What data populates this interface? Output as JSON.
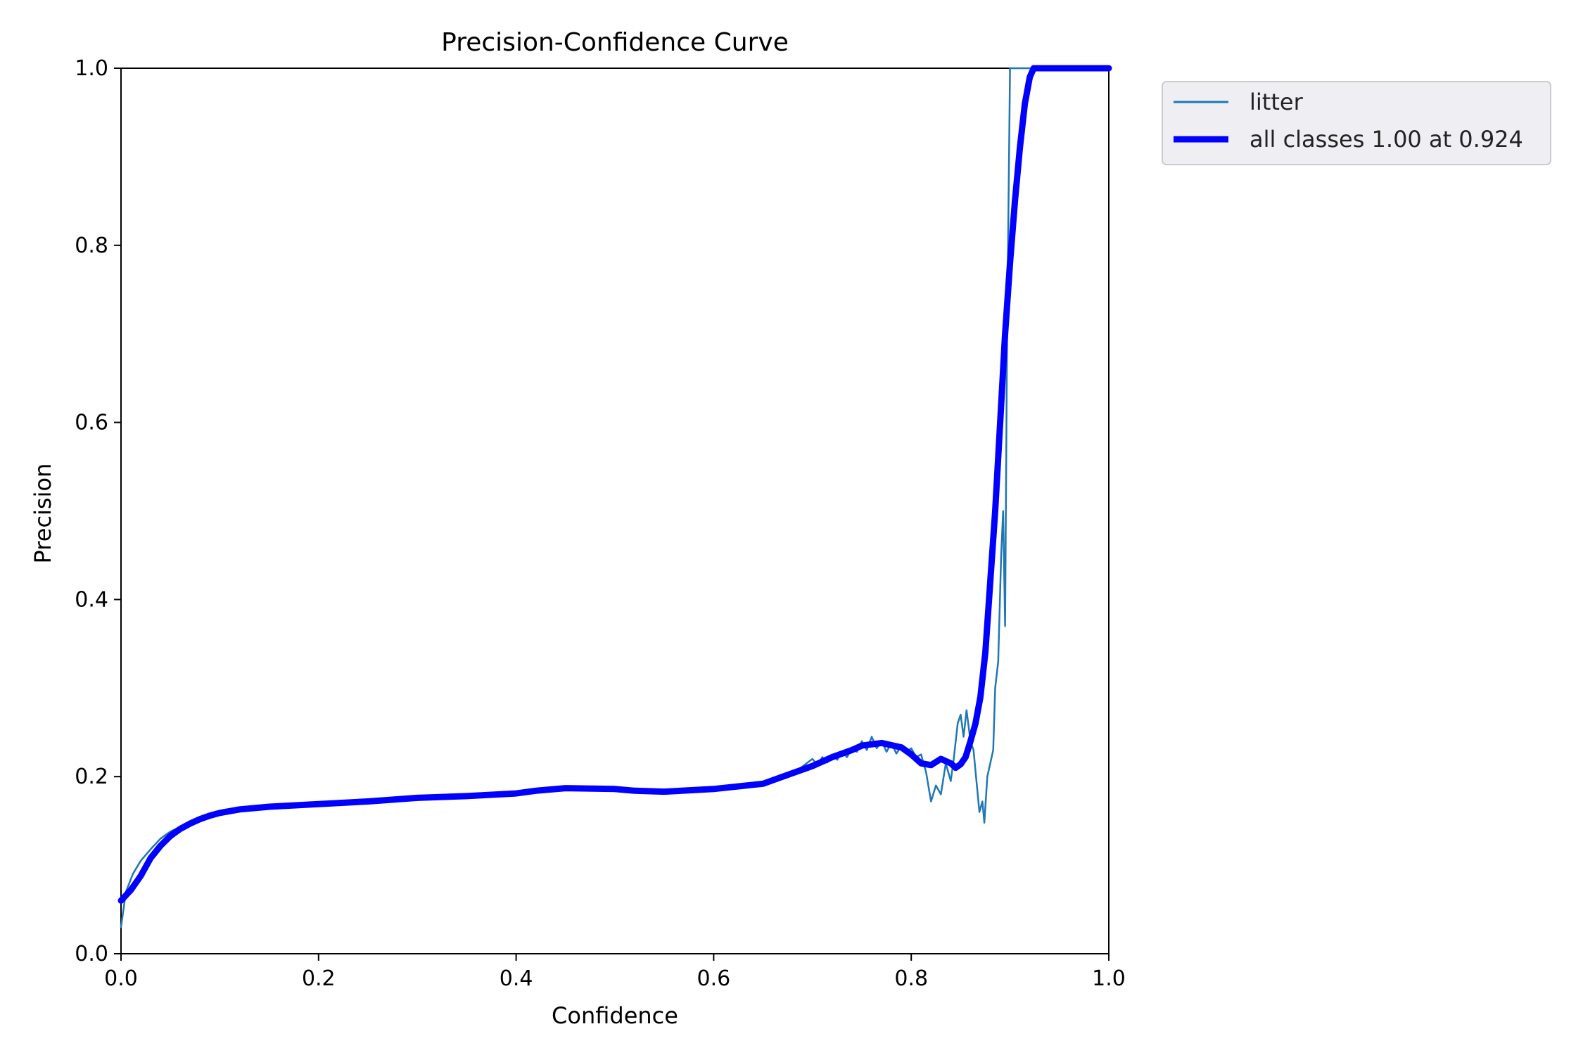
{
  "chart_data": {
    "type": "line",
    "title": "Precision-Confidence Curve",
    "xlabel": "Confidence",
    "ylabel": "Precision",
    "xlim": [
      0,
      1
    ],
    "ylim": [
      0,
      1
    ],
    "x_ticks": [
      "0.0",
      "0.2",
      "0.4",
      "0.6",
      "0.8",
      "1.0"
    ],
    "y_ticks": [
      "0.0",
      "0.2",
      "0.4",
      "0.6",
      "0.8",
      "1.0"
    ],
    "grid": false,
    "legend_position": "outside-top-right",
    "series": [
      {
        "name": "litter",
        "color": "#1f77b4",
        "points": [
          [
            0,
            0.03
          ],
          [
            0.005,
            0.07
          ],
          [
            0.012,
            0.09
          ],
          [
            0.02,
            0.105
          ],
          [
            0.03,
            0.118
          ],
          [
            0.04,
            0.13
          ],
          [
            0.05,
            0.138
          ],
          [
            0.065,
            0.146
          ],
          [
            0.08,
            0.152
          ],
          [
            0.1,
            0.158
          ],
          [
            0.13,
            0.163
          ],
          [
            0.16,
            0.166
          ],
          [
            0.2,
            0.169
          ],
          [
            0.25,
            0.173
          ],
          [
            0.3,
            0.175
          ],
          [
            0.35,
            0.177
          ],
          [
            0.4,
            0.181
          ],
          [
            0.45,
            0.186
          ],
          [
            0.5,
            0.185
          ],
          [
            0.55,
            0.183
          ],
          [
            0.6,
            0.186
          ],
          [
            0.65,
            0.192
          ],
          [
            0.68,
            0.203
          ],
          [
            0.7,
            0.22
          ],
          [
            0.705,
            0.213
          ],
          [
            0.71,
            0.222
          ],
          [
            0.715,
            0.216
          ],
          [
            0.72,
            0.225
          ],
          [
            0.725,
            0.219
          ],
          [
            0.73,
            0.228
          ],
          [
            0.735,
            0.222
          ],
          [
            0.74,
            0.233
          ],
          [
            0.745,
            0.228
          ],
          [
            0.75,
            0.24
          ],
          [
            0.755,
            0.23
          ],
          [
            0.76,
            0.245
          ],
          [
            0.765,
            0.232
          ],
          [
            0.77,
            0.24
          ],
          [
            0.775,
            0.228
          ],
          [
            0.78,
            0.238
          ],
          [
            0.785,
            0.226
          ],
          [
            0.79,
            0.235
          ],
          [
            0.795,
            0.228
          ],
          [
            0.8,
            0.232
          ],
          [
            0.805,
            0.222
          ],
          [
            0.81,
            0.225
          ],
          [
            0.815,
            0.205
          ],
          [
            0.82,
            0.172
          ],
          [
            0.825,
            0.19
          ],
          [
            0.83,
            0.18
          ],
          [
            0.835,
            0.215
          ],
          [
            0.84,
            0.195
          ],
          [
            0.843,
            0.22
          ],
          [
            0.847,
            0.26
          ],
          [
            0.85,
            0.27
          ],
          [
            0.853,
            0.245
          ],
          [
            0.856,
            0.275
          ],
          [
            0.86,
            0.24
          ],
          [
            0.863,
            0.23
          ],
          [
            0.866,
            0.195
          ],
          [
            0.869,
            0.16
          ],
          [
            0.872,
            0.172
          ],
          [
            0.874,
            0.148
          ],
          [
            0.877,
            0.2
          ],
          [
            0.88,
            0.215
          ],
          [
            0.883,
            0.23
          ],
          [
            0.885,
            0.3
          ],
          [
            0.888,
            0.33
          ],
          [
            0.891,
            0.45
          ],
          [
            0.893,
            0.5
          ],
          [
            0.895,
            0.37
          ],
          [
            0.897,
            0.7
          ],
          [
            0.9,
            1.0
          ],
          [
            0.92,
            1.0
          ],
          [
            1.0,
            1.0
          ]
        ]
      },
      {
        "name": "all classes 1.00 at 0.924",
        "color": "#0000ff",
        "points": [
          [
            0,
            0.06
          ],
          [
            0.01,
            0.072
          ],
          [
            0.02,
            0.088
          ],
          [
            0.03,
            0.108
          ],
          [
            0.04,
            0.122
          ],
          [
            0.05,
            0.133
          ],
          [
            0.06,
            0.141
          ],
          [
            0.07,
            0.147
          ],
          [
            0.08,
            0.152
          ],
          [
            0.09,
            0.156
          ],
          [
            0.1,
            0.159
          ],
          [
            0.12,
            0.163
          ],
          [
            0.15,
            0.166
          ],
          [
            0.2,
            0.169
          ],
          [
            0.25,
            0.172
          ],
          [
            0.3,
            0.176
          ],
          [
            0.35,
            0.178
          ],
          [
            0.4,
            0.181
          ],
          [
            0.42,
            0.184
          ],
          [
            0.45,
            0.187
          ],
          [
            0.5,
            0.186
          ],
          [
            0.52,
            0.184
          ],
          [
            0.55,
            0.183
          ],
          [
            0.6,
            0.186
          ],
          [
            0.65,
            0.192
          ],
          [
            0.67,
            0.2
          ],
          [
            0.7,
            0.212
          ],
          [
            0.72,
            0.222
          ],
          [
            0.74,
            0.23
          ],
          [
            0.75,
            0.235
          ],
          [
            0.77,
            0.238
          ],
          [
            0.79,
            0.233
          ],
          [
            0.8,
            0.225
          ],
          [
            0.81,
            0.215
          ],
          [
            0.82,
            0.213
          ],
          [
            0.83,
            0.22
          ],
          [
            0.84,
            0.215
          ],
          [
            0.845,
            0.21
          ],
          [
            0.85,
            0.214
          ],
          [
            0.855,
            0.222
          ],
          [
            0.86,
            0.24
          ],
          [
            0.865,
            0.26
          ],
          [
            0.87,
            0.29
          ],
          [
            0.875,
            0.34
          ],
          [
            0.88,
            0.42
          ],
          [
            0.885,
            0.5
          ],
          [
            0.89,
            0.6
          ],
          [
            0.895,
            0.7
          ],
          [
            0.9,
            0.78
          ],
          [
            0.905,
            0.85
          ],
          [
            0.91,
            0.91
          ],
          [
            0.915,
            0.96
          ],
          [
            0.92,
            0.99
          ],
          [
            0.924,
            1.0
          ],
          [
            1.0,
            1.0
          ]
        ]
      }
    ]
  }
}
